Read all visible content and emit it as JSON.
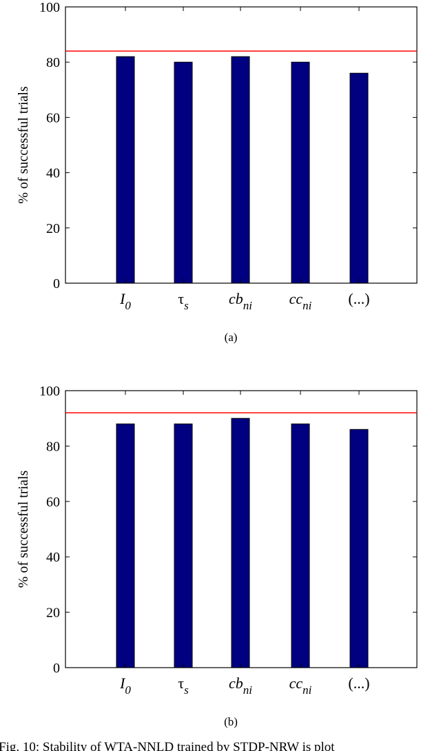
{
  "colors": {
    "bar": "#000080",
    "reference_line": "#ff0000",
    "axis": "#000000"
  },
  "figure_caption": "Fig. 10: Stability of WTA-NNLD trained by STDP-NRW is plot",
  "chart_data": [
    {
      "type": "bar",
      "panel_label": "(a)",
      "ylabel": "% of successful trials",
      "xlabel": "",
      "categories": [
        {
          "base": "I",
          "sub": "0",
          "italic": true
        },
        {
          "base": "τ",
          "sub": "s",
          "italic": false
        },
        {
          "base": "cb",
          "sub": "ni",
          "italic": true
        },
        {
          "base": "cc",
          "sub": "ni",
          "italic": true
        },
        {
          "base": "(...)",
          "sub": "",
          "italic": false
        }
      ],
      "values": [
        82,
        80,
        82,
        80,
        76
      ],
      "reference_line": 84,
      "ylim": [
        0,
        100
      ],
      "yticks": [
        "0",
        "20",
        "40",
        "60",
        "80",
        "100"
      ],
      "grid": false
    },
    {
      "type": "bar",
      "panel_label": "(b)",
      "ylabel": "% of successful trials",
      "xlabel": "",
      "categories": [
        {
          "base": "I",
          "sub": "0",
          "italic": true
        },
        {
          "base": "τ",
          "sub": "s",
          "italic": false
        },
        {
          "base": "cb",
          "sub": "ni",
          "italic": true
        },
        {
          "base": "cc",
          "sub": "ni",
          "italic": true
        },
        {
          "base": "(...)",
          "sub": "",
          "italic": false
        }
      ],
      "values": [
        88,
        88,
        90,
        88,
        86
      ],
      "reference_line": 92,
      "ylim": [
        0,
        100
      ],
      "yticks": [
        "0",
        "20",
        "40",
        "60",
        "80",
        "100"
      ],
      "grid": false
    }
  ]
}
